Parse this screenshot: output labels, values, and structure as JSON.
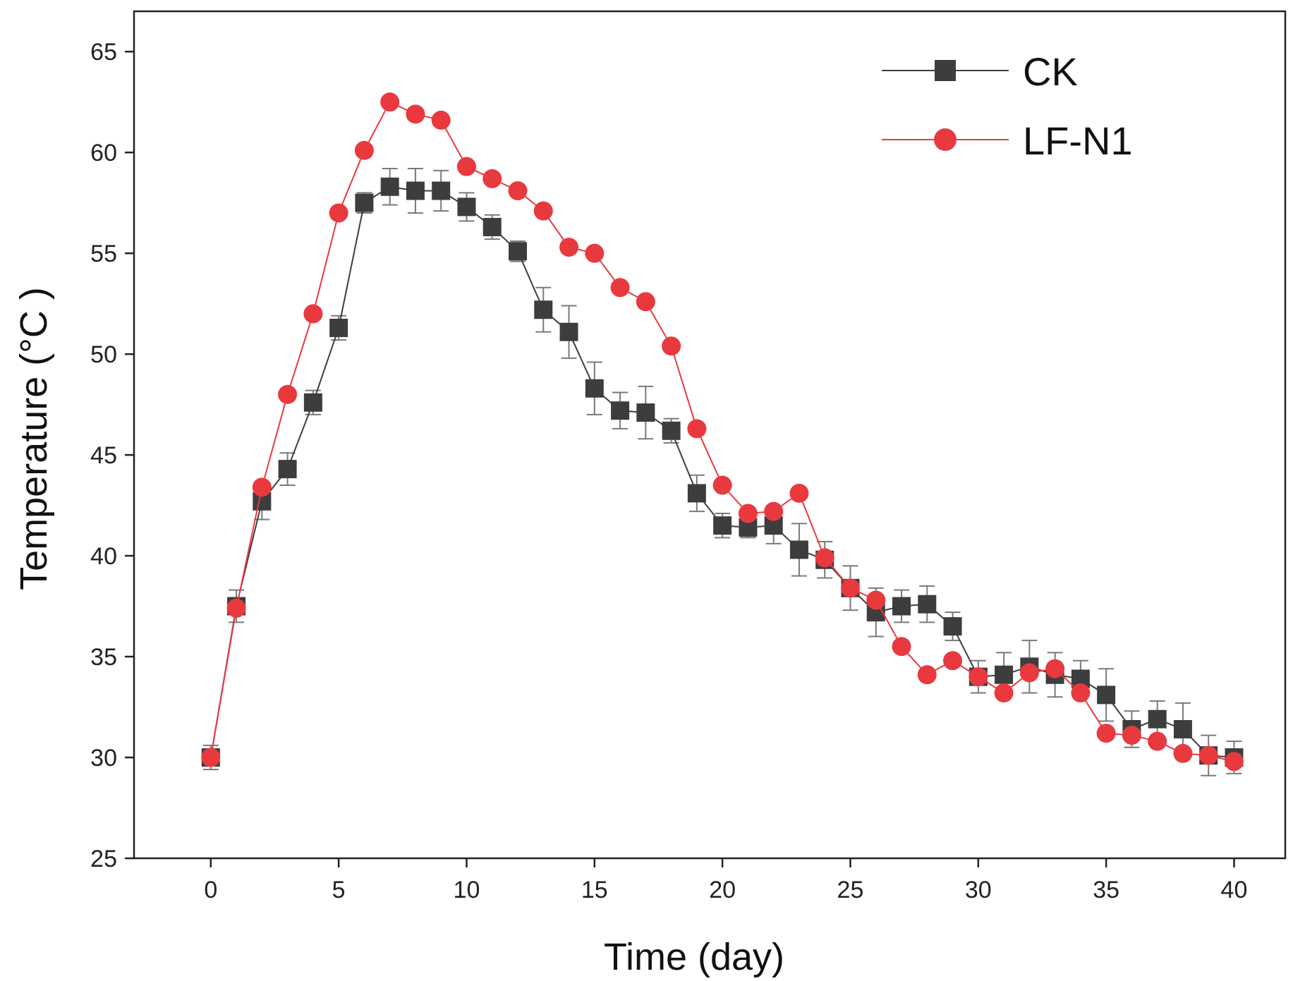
{
  "chart_data": {
    "type": "line",
    "xlabel": "Time (day)",
    "ylabel": "Temperature (°C )",
    "xlim": [
      -3,
      42
    ],
    "ylim": [
      25,
      67
    ],
    "xticks": [
      0,
      5,
      10,
      15,
      20,
      25,
      30,
      35,
      40
    ],
    "yticks": [
      25,
      30,
      35,
      40,
      45,
      50,
      55,
      60,
      65
    ],
    "legend_position": "top-right",
    "series": [
      {
        "name": "CK",
        "color": "#3d3d3d",
        "marker": "square",
        "x": [
          0,
          1,
          2,
          3,
          4,
          5,
          6,
          7,
          8,
          9,
          10,
          11,
          12,
          13,
          14,
          15,
          16,
          17,
          18,
          19,
          20,
          21,
          22,
          23,
          24,
          25,
          26,
          27,
          28,
          29,
          30,
          31,
          32,
          33,
          34,
          35,
          36,
          37,
          38,
          39,
          40
        ],
        "y": [
          30.0,
          37.5,
          42.7,
          44.3,
          47.6,
          51.3,
          57.5,
          58.3,
          58.1,
          58.1,
          57.3,
          56.3,
          55.1,
          52.2,
          51.1,
          48.3,
          47.2,
          47.1,
          46.2,
          43.1,
          41.5,
          41.4,
          41.5,
          40.3,
          39.8,
          38.4,
          37.2,
          37.5,
          37.6,
          36.5,
          34.0,
          34.1,
          34.5,
          34.1,
          33.9,
          33.1,
          31.4,
          31.9,
          31.4,
          30.1,
          30.0
        ],
        "errors": [
          0.6,
          0.8,
          0.9,
          0.8,
          0.6,
          0.6,
          0.5,
          0.9,
          1.1,
          1.0,
          0.7,
          0.6,
          0.5,
          1.1,
          1.3,
          1.3,
          0.9,
          1.3,
          0.6,
          0.9,
          0.6,
          0.5,
          0.9,
          1.3,
          0.9,
          1.1,
          1.2,
          0.8,
          0.9,
          0.7,
          0.8,
          1.1,
          1.3,
          1.1,
          0.9,
          1.3,
          0.9,
          0.9,
          1.3,
          1.0,
          0.8
        ]
      },
      {
        "name": "LF-N1",
        "color": "#e8393f",
        "marker": "circle",
        "x": [
          0,
          1,
          2,
          3,
          4,
          5,
          6,
          7,
          8,
          9,
          10,
          11,
          12,
          13,
          14,
          15,
          16,
          17,
          18,
          19,
          20,
          21,
          22,
          23,
          24,
          25,
          26,
          27,
          28,
          29,
          30,
          31,
          32,
          33,
          34,
          35,
          36,
          37,
          38,
          39,
          40
        ],
        "y": [
          30.0,
          37.4,
          43.4,
          48.0,
          52.0,
          57.0,
          60.1,
          62.5,
          61.9,
          61.6,
          59.3,
          58.7,
          58.1,
          57.1,
          55.3,
          55.0,
          53.3,
          52.6,
          50.4,
          46.3,
          43.5,
          42.1,
          42.2,
          43.1,
          39.9,
          38.4,
          37.8,
          35.5,
          34.1,
          34.8,
          34.0,
          33.2,
          34.2,
          34.4,
          33.2,
          31.2,
          31.1,
          30.8,
          30.2,
          30.1,
          29.8
        ]
      }
    ]
  }
}
